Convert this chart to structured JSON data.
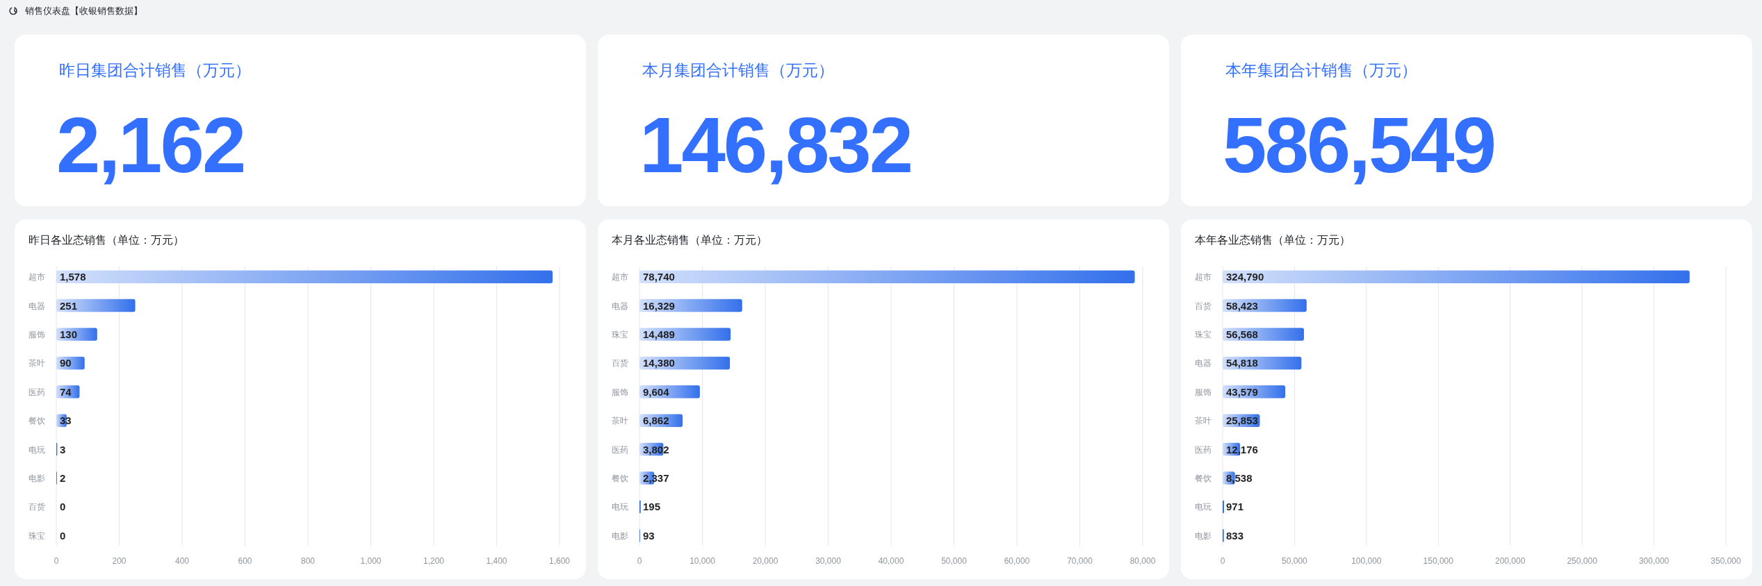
{
  "chart_data": [
    {
      "type": "other",
      "title": "销售仪表盘【收银销售数据】"
    },
    {
      "type": "other",
      "title": "昨日集团合计销售（万元）",
      "annotations": [
        "2,162"
      ]
    },
    {
      "type": "other",
      "title": "本月集团合计销售（万元）",
      "annotations": [
        "146,832"
      ]
    },
    {
      "type": "other",
      "title": "本年集团合计销售（万元）",
      "annotations": [
        "586,549"
      ]
    },
    {
      "type": "bar",
      "orientation": "horizontal",
      "title": "昨日各业态销售（单位：万元）",
      "categories": [
        "超市",
        "电器",
        "服饰",
        "茶叶",
        "医药",
        "餐饮",
        "电玩",
        "电影",
        "百货",
        "珠宝"
      ],
      "values": [
        1578,
        251,
        130,
        90,
        74,
        33,
        3,
        2,
        0,
        0
      ],
      "value_labels": [
        "1,578",
        "251",
        "130",
        "90",
        "74",
        "33",
        "3",
        "2",
        "0",
        "0"
      ],
      "color": "#3370eb",
      "xlim": [
        0,
        1600
      ],
      "xticks": [
        0,
        200,
        400,
        600,
        800,
        {
          "value": 1000,
          "label": "1,000"
        },
        {
          "value": 1200,
          "label": "1,200"
        },
        {
          "value": 1400,
          "label": "1,400"
        },
        {
          "value": 1600,
          "label": "1,600"
        }
      ],
      "grid": "x"
    },
    {
      "type": "bar",
      "orientation": "horizontal",
      "title": "本月各业态销售（单位：万元）",
      "categories": [
        "超市",
        "电器",
        "珠宝",
        "百货",
        "服饰",
        "茶叶",
        "医药",
        "餐饮",
        "电玩",
        "电影"
      ],
      "values": [
        78740,
        16329,
        14489,
        14380,
        9604,
        6862,
        3802,
        2337,
        195,
        93
      ],
      "value_labels": [
        "78,740",
        "16,329",
        "14,489",
        "14,380",
        "9,604",
        "6,862",
        "3,802",
        "2,337",
        "195",
        "93"
      ],
      "color": "#3370eb",
      "xlim": [
        0,
        80000
      ],
      "xticks": [
        0,
        {
          "value": 10000,
          "label": "10,000"
        },
        {
          "value": 20000,
          "label": "20,000"
        },
        {
          "value": 30000,
          "label": "30,000"
        },
        {
          "value": 40000,
          "label": "40,000"
        },
        {
          "value": 50000,
          "label": "50,000"
        },
        {
          "value": 60000,
          "label": "60,000"
        },
        {
          "value": 70000,
          "label": "70,000"
        },
        {
          "value": 80000,
          "label": "80,000"
        }
      ],
      "grid": "x"
    },
    {
      "type": "bar",
      "orientation": "horizontal",
      "title": "本年各业态销售（单位：万元）",
      "categories": [
        "超市",
        "百货",
        "珠宝",
        "电器",
        "服饰",
        "茶叶",
        "医药",
        "餐饮",
        "电玩",
        "电影"
      ],
      "values": [
        324790,
        58423,
        56568,
        54818,
        43579,
        25853,
        12176,
        8538,
        971,
        833
      ],
      "value_labels": [
        "324,790",
        "58,423",
        "56,568",
        "54,818",
        "43,579",
        "25,853",
        "12,176",
        "8,538",
        "971",
        "833"
      ],
      "color": "#3370eb",
      "xlim": [
        0,
        350000
      ],
      "xticks": [
        0,
        {
          "value": 50000,
          "label": "50,000"
        },
        {
          "value": 100000,
          "label": "100,000"
        },
        {
          "value": 150000,
          "label": "150,000"
        },
        {
          "value": 200000,
          "label": "200,000"
        },
        {
          "value": 250000,
          "label": "250,000"
        },
        {
          "value": 300000,
          "label": "300,000"
        },
        {
          "value": 350000,
          "label": "350,000"
        }
      ],
      "grid": "x"
    }
  ]
}
